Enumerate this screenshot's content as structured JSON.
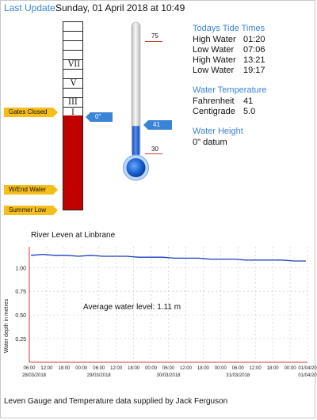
{
  "header": {
    "last_update_label": "Last Update:",
    "last_update_value": "Sunday, 01 April 2018 at 10:49"
  },
  "gauge": {
    "numerals": [
      "VII",
      "V",
      "III",
      "I"
    ],
    "fill_fraction": 0.5,
    "colors": {
      "fill": "#c10000"
    }
  },
  "markers": {
    "gates_closed": "Gates Closed",
    "wend_water": "W/End Water",
    "summer_low": "Summer Low",
    "level_tag": "0\""
  },
  "thermometer": {
    "scale_top": "75",
    "scale_bottom": "30",
    "current": "41",
    "current_value": 41,
    "min": 30,
    "max": 75,
    "colors": {
      "mercury": "#1f67db",
      "tube": "#e3e3e3"
    }
  },
  "tides": {
    "title": "Todays Tide Times",
    "rows": [
      {
        "label": "High Water",
        "time": "01:20"
      },
      {
        "label": "Low Water",
        "time": "07:06"
      },
      {
        "label": "High Water",
        "time": "13:21"
      },
      {
        "label": "Low Water",
        "time": "19:17"
      }
    ]
  },
  "water_temperature": {
    "title": "Water Temperature",
    "rows": [
      {
        "label": "Fahrenheit",
        "value": "41"
      },
      {
        "label": "Centigrade",
        "value": "5.0"
      }
    ]
  },
  "water_height": {
    "title": "Water Height",
    "value": "0\"  datum"
  },
  "chart_data": {
    "type": "line",
    "title": "River Leven at Linbrane",
    "ylabel": "Water depth in metres",
    "annotation": "Average water level: 1.11 m",
    "ylim": [
      0,
      1.22
    ],
    "yticks": [
      "1.00",
      "0.75",
      "0.50",
      "0.25"
    ],
    "ytick_values": [
      1.0,
      0.75,
      0.5,
      0.25
    ],
    "xticks": [
      "06:00",
      "12:00",
      "18:00",
      "00:00",
      "06:00",
      "12:00",
      "18:00",
      "00:00",
      "06:00",
      "12:00",
      "18:00",
      "00:00",
      "06:00",
      "12:00",
      "18:00",
      "00:00",
      "01/04/20"
    ],
    "xdates": [
      "28/03/2018",
      "29/03/2018",
      "30/03/2018",
      "31/03/2018",
      "01/04/20"
    ],
    "series": [
      {
        "values": [
          1.13,
          1.14,
          1.13,
          1.13,
          1.12,
          1.13,
          1.12,
          1.12,
          1.12,
          1.11,
          1.11,
          1.11,
          1.1,
          1.1,
          1.1,
          1.09,
          1.09,
          1.09,
          1.08,
          1.08,
          1.08,
          1.08,
          1.07,
          1.07
        ]
      }
    ],
    "colors": {
      "line": "#1a3fbf",
      "axis": "#d23a3a",
      "grid": "#cccccc"
    }
  },
  "footer": {
    "credit": "Leven Gauge and Temperature data supplied by Jack Ferguson"
  }
}
